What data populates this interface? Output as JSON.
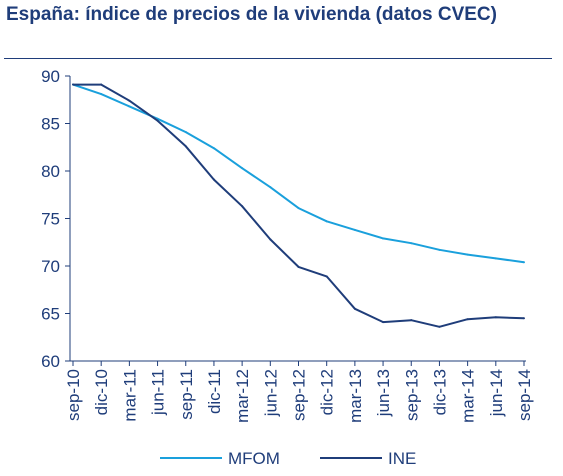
{
  "chart_data": {
    "type": "line",
    "title": "España: índice de precios de la vivienda (datos CVEC)",
    "categories": [
      "sep-10",
      "dic-10",
      "mar-11",
      "jun-11",
      "sep-11",
      "dic-11",
      "mar-12",
      "jun-12",
      "sep-12",
      "dic-12",
      "mar-13",
      "jun-13",
      "sep-13",
      "dic-13",
      "mar-14",
      "jun-14",
      "sep-14"
    ],
    "ylim": [
      60,
      90
    ],
    "yticks": [
      60,
      65,
      70,
      75,
      80,
      85,
      90
    ],
    "grid": false,
    "legend_position": "bottom",
    "series": [
      {
        "name": "MFOM",
        "color": "#1aa0dc",
        "values": [
          89.1,
          88.1,
          86.8,
          85.5,
          84.1,
          82.4,
          80.3,
          78.3,
          76.1,
          74.7,
          73.8,
          72.9,
          72.4,
          71.7,
          71.2,
          70.8,
          70.4
        ]
      },
      {
        "name": "INE",
        "color": "#1f3d7a",
        "values": [
          89.1,
          89.1,
          87.4,
          85.3,
          82.6,
          79.1,
          76.3,
          72.8,
          69.9,
          68.9,
          65.5,
          64.1,
          64.3,
          63.6,
          64.4,
          64.6,
          64.5
        ]
      }
    ]
  }
}
